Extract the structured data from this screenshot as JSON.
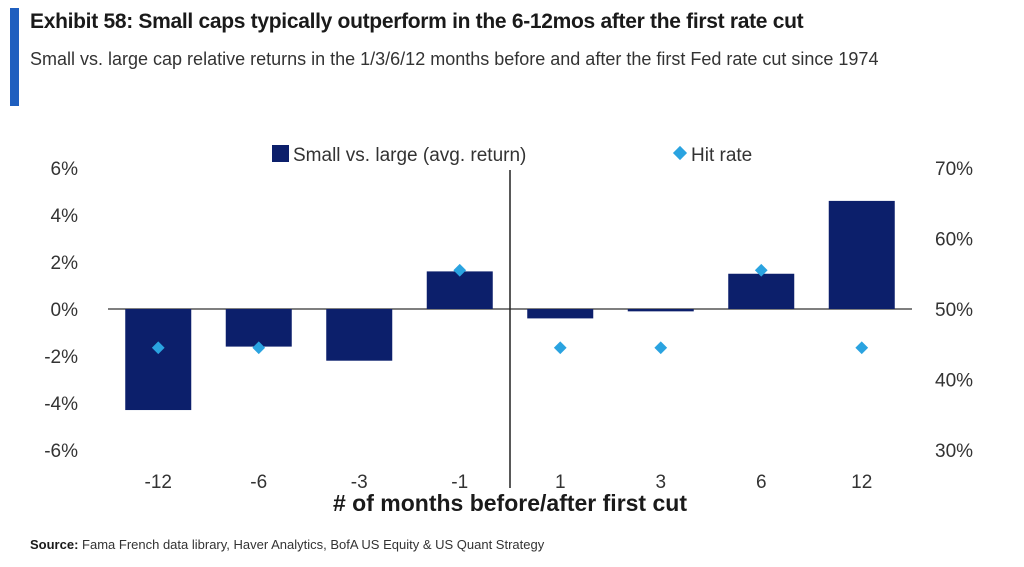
{
  "header": {
    "title": "Exhibit 58: Small caps typically outperform in the 6-12mos after the first rate cut",
    "subtitle": "Small vs. large cap relative returns in the 1/3/6/12 months before and after the first Fed rate cut since 1974"
  },
  "footer": {
    "source_label": "Source:",
    "source_text": "Fama French data library, Haver Analytics, BofA US Equity & US Quant Strategy"
  },
  "colors": {
    "accent": "#1f5fbf",
    "bar": "#0c1f6b",
    "marker": "#2aa3e0"
  },
  "chart_data": {
    "type": "bar",
    "categories": [
      "-12",
      "-6",
      "-3",
      "-1",
      "1",
      "3",
      "6",
      "12"
    ],
    "series": [
      {
        "name": "Small vs. large (avg. return)",
        "type": "bar",
        "axis": "left",
        "values": [
          -4.3,
          -1.6,
          -2.2,
          1.6,
          -0.4,
          -0.1,
          1.5,
          4.6
        ]
      },
      {
        "name": "Hit rate",
        "type": "scatter",
        "axis": "right",
        "values": [
          44.5,
          44.5,
          null,
          55.5,
          44.5,
          44.5,
          55.5,
          44.5
        ]
      }
    ],
    "xlabel": "# of months before/after first cut",
    "ylim": [
      -6,
      6
    ],
    "y_ticks": [
      "6%",
      "4%",
      "2%",
      "0%",
      "-2%",
      "-4%",
      "-6%"
    ],
    "y2lim": [
      30,
      70
    ],
    "y2_ticks": [
      "70%",
      "60%",
      "50%",
      "40%",
      "30%"
    ],
    "legend_position": "top-center",
    "grid": false
  }
}
